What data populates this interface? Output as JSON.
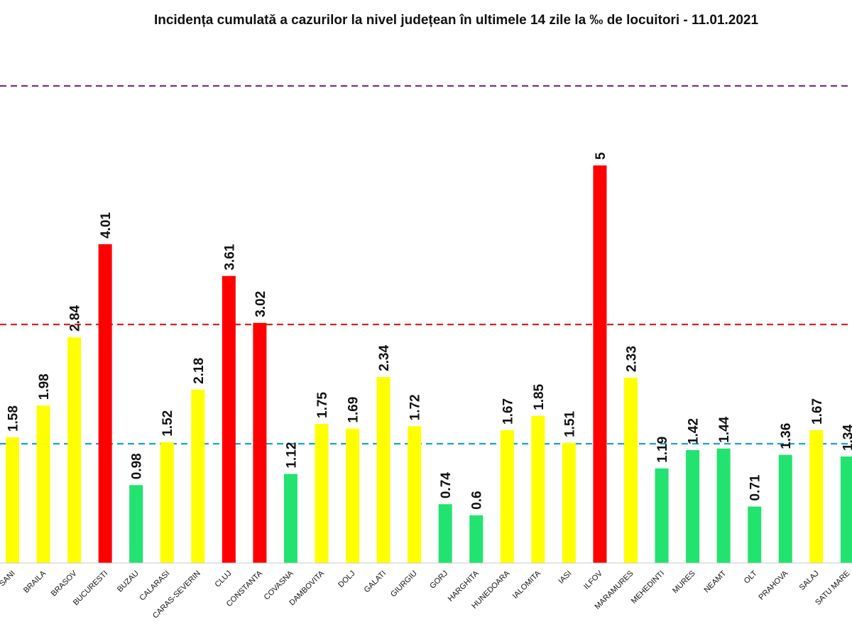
{
  "chart_data": {
    "type": "bar",
    "title": "Incidența cumulată a cazurilor la nivel județean în ultimele 14 zile la ‰ de locuitori - 11.01.2021",
    "xlabel": "",
    "ylabel": "",
    "ylim": [
      0,
      6.0
    ],
    "categories": [
      "BOTOSANI",
      "BRAILA",
      "BRASOV",
      "BUCURESTI",
      "BUZAU",
      "CALARASI",
      "CARAS-SEVERIN",
      "CLUJ",
      "CONSTANTA",
      "COVASNA",
      "DAMBOVITA",
      "DOLJ",
      "GALATI",
      "GIURGIU",
      "GORJ",
      "HARGHITA",
      "HUNEDOARA",
      "IALOMITA",
      "IASI",
      "ILFOV",
      "MARAMURES",
      "MEHEDINTI",
      "MURES",
      "NEAMT",
      "OLT",
      "PRAHOVA",
      "SALAJ",
      "SATU MARE"
    ],
    "category_display": [
      "SANI",
      "BRAILA",
      "BRASOV",
      "BUCURESTI",
      "BUZAU",
      "CALARASI",
      "CARAS-SEVERIN",
      "CLUJ",
      "CONSTANTA",
      "COVASNA",
      "DAMBOVITA",
      "DOLJ",
      "GALATI",
      "GIURGIU",
      "GORJ",
      "HARGHITA",
      "HUNEDOARA",
      "IALOMITA",
      "IASI",
      "ILFOV",
      "MARAMURES",
      "MEHEDINTI",
      "MURES",
      "NEAMT",
      "OLT",
      "PRAHOVA",
      "SALAJ",
      "SATU MARE"
    ],
    "values": [
      1.58,
      1.98,
      2.84,
      4.01,
      0.98,
      1.52,
      2.18,
      3.61,
      3.02,
      1.12,
      1.75,
      1.69,
      2.34,
      1.72,
      0.74,
      0.6,
      1.67,
      1.85,
      1.51,
      5,
      2.33,
      1.19,
      1.42,
      1.44,
      0.71,
      1.36,
      1.67,
      1.34
    ],
    "value_labels": [
      "1.58",
      "1.98",
      "2.84",
      "4.01",
      "0.98",
      "1.52",
      "2.18",
      "3.61",
      "3.02",
      "1.12",
      "1.75",
      "1.69",
      "2.34",
      "1.72",
      "0.74",
      "0.6",
      "1.67",
      "1.85",
      "1.51",
      "5",
      "2.33",
      "1.19",
      "1.42",
      "1.44",
      "0.71",
      "1.36",
      "1.67",
      "1.34"
    ],
    "color_scale": {
      "green": "#22e36f",
      "yellow": "#ffff00",
      "red": "#ff0000",
      "rules": "green if < 1.5, yellow if 1.5–3, red if > 3"
    },
    "reference_lines": [
      {
        "name": "threshold-1.5",
        "value": 1.5,
        "color": "#17a2d6",
        "style": "dashed"
      },
      {
        "name": "threshold-3",
        "value": 3.0,
        "color": "#e02020",
        "style": "dashed"
      },
      {
        "name": "threshold-6",
        "value": 6.0,
        "color": "#7030a0",
        "style": "dashed"
      }
    ],
    "grid": false,
    "legend": "none"
  }
}
